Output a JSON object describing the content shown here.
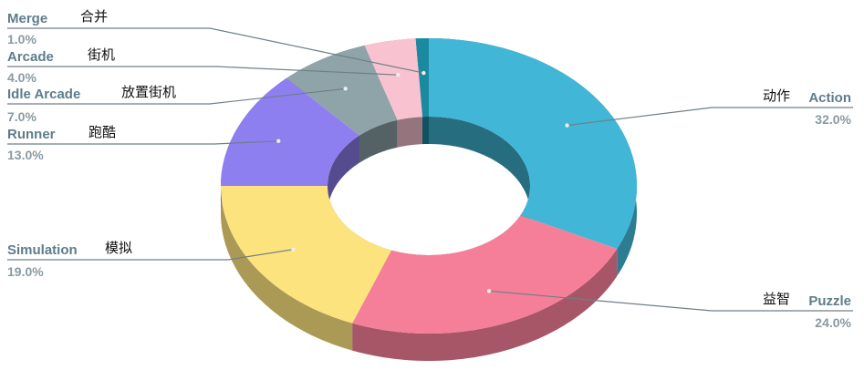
{
  "chart_data": {
    "type": "donut",
    "categories": [
      "Action",
      "Puzzle",
      "Simulation",
      "Runner",
      "Idle Arcade",
      "Arcade",
      "Merge"
    ],
    "local_names": [
      "动作",
      "益智",
      "模拟",
      "跑酷",
      "放置街机",
      "街机",
      "合并"
    ],
    "values": [
      32,
      24,
      19,
      13,
      7,
      4,
      1
    ],
    "value_labels": [
      "32.0%",
      "24.0%",
      "19.0%",
      "13.0%",
      "7.0%",
      "4.0%",
      "1.0%"
    ],
    "colors": [
      "#41b6d6",
      "#f57f98",
      "#fce37e",
      "#8e7ff0",
      "#8ea4a9",
      "#f9c2d0",
      "#1a8aa0"
    ]
  }
}
